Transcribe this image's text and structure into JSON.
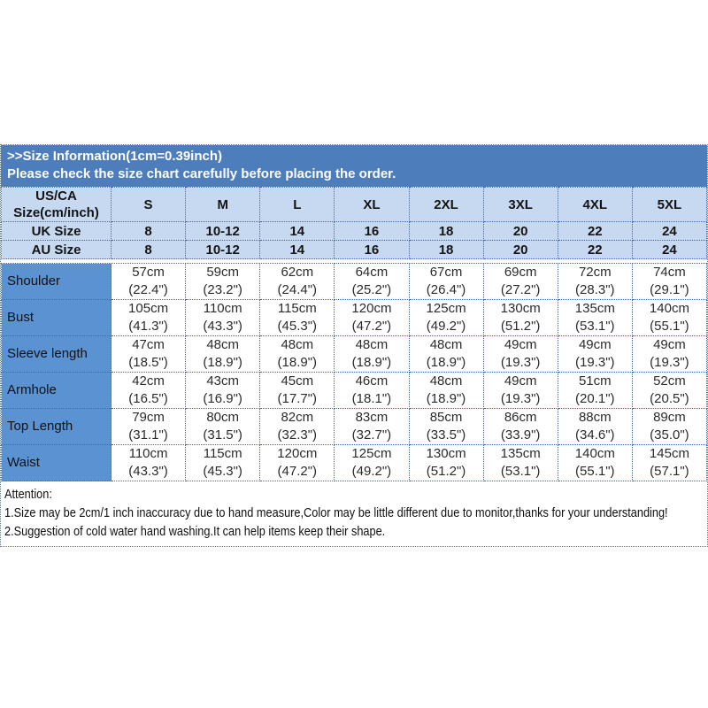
{
  "banner": {
    "line1": ">>Size Information(1cm=0.39inch)",
    "line2": "Please check the size chart carefully before placing the order."
  },
  "table": {
    "corner_header": "US/CA\nSize(cm/inch)",
    "size_labels": [
      "S",
      "M",
      "L",
      "XL",
      "2XL",
      "3XL",
      "4XL",
      "5XL"
    ],
    "uk": {
      "label": "UK Size",
      "values": [
        "8",
        "10-12",
        "14",
        "16",
        "18",
        "20",
        "22",
        "24"
      ]
    },
    "au": {
      "label": "AU Size",
      "values": [
        "8",
        "10-12",
        "14",
        "16",
        "18",
        "20",
        "22",
        "24"
      ]
    },
    "rows": [
      {
        "label": "Shoulder",
        "values": [
          "57cm\n(22.4\")",
          "59cm\n(23.2\")",
          "62cm\n(24.4\")",
          "64cm\n(25.2\")",
          "67cm\n(26.4\")",
          "69cm\n(27.2\")",
          "72cm\n(28.3\")",
          "74cm\n(29.1\")"
        ]
      },
      {
        "label": "Bust",
        "values": [
          "105cm\n(41.3\")",
          "110cm\n(43.3\")",
          "115cm\n(45.3\")",
          "120cm\n(47.2\")",
          "125cm\n(49.2\")",
          "130cm\n(51.2\")",
          "135cm\n(53.1\")",
          "140cm\n(55.1\")"
        ]
      },
      {
        "label": "Sleeve length",
        "values": [
          "47cm\n(18.5\")",
          "48cm\n(18.9\")",
          "48cm\n(18.9\")",
          "48cm\n(18.9\")",
          "48cm\n(18.9\")",
          "49cm\n(19.3\")",
          "49cm\n(19.3\")",
          "49cm\n(19.3\")"
        ]
      },
      {
        "label": "Armhole",
        "values": [
          "42cm\n(16.5\")",
          "43cm\n(16.9\")",
          "45cm\n(17.7\")",
          "46cm\n(18.1\")",
          "48cm\n(18.9\")",
          "49cm\n(19.3\")",
          "51cm\n(20.1\")",
          "52cm\n(20.5\")"
        ]
      },
      {
        "label": "Top Length",
        "values": [
          "79cm\n(31.1\")",
          "80cm\n(31.5\")",
          "82cm\n(32.3\")",
          "83cm\n(32.7\")",
          "85cm\n(33.5\")",
          "86cm\n(33.9\")",
          "88cm\n(34.6\")",
          "89cm\n(35.0\")"
        ]
      },
      {
        "label": "Waist",
        "values": [
          "110cm\n(43.3\")",
          "115cm\n(45.3\")",
          "120cm\n(47.2\")",
          "125cm\n(49.2\")",
          "130cm\n(51.2\")",
          "135cm\n(53.1\")",
          "140cm\n(55.1\")",
          "145cm\n(57.1\")"
        ]
      }
    ]
  },
  "attention": {
    "title": "Attention:",
    "note1": "1.Size may be 2cm/1 inch inaccuracy due to hand measure,Color may be little different due to monitor,thanks for your understanding!",
    "note2": "2.Suggestion of cold water hand washing.It can help items keep their shape."
  },
  "colors": {
    "banner_bg": "#4d7dbb",
    "header_bg": "#c6d9f0",
    "row_label_bg": "#5b92d2",
    "border": "#44679c",
    "text": "#2b2b2b"
  }
}
